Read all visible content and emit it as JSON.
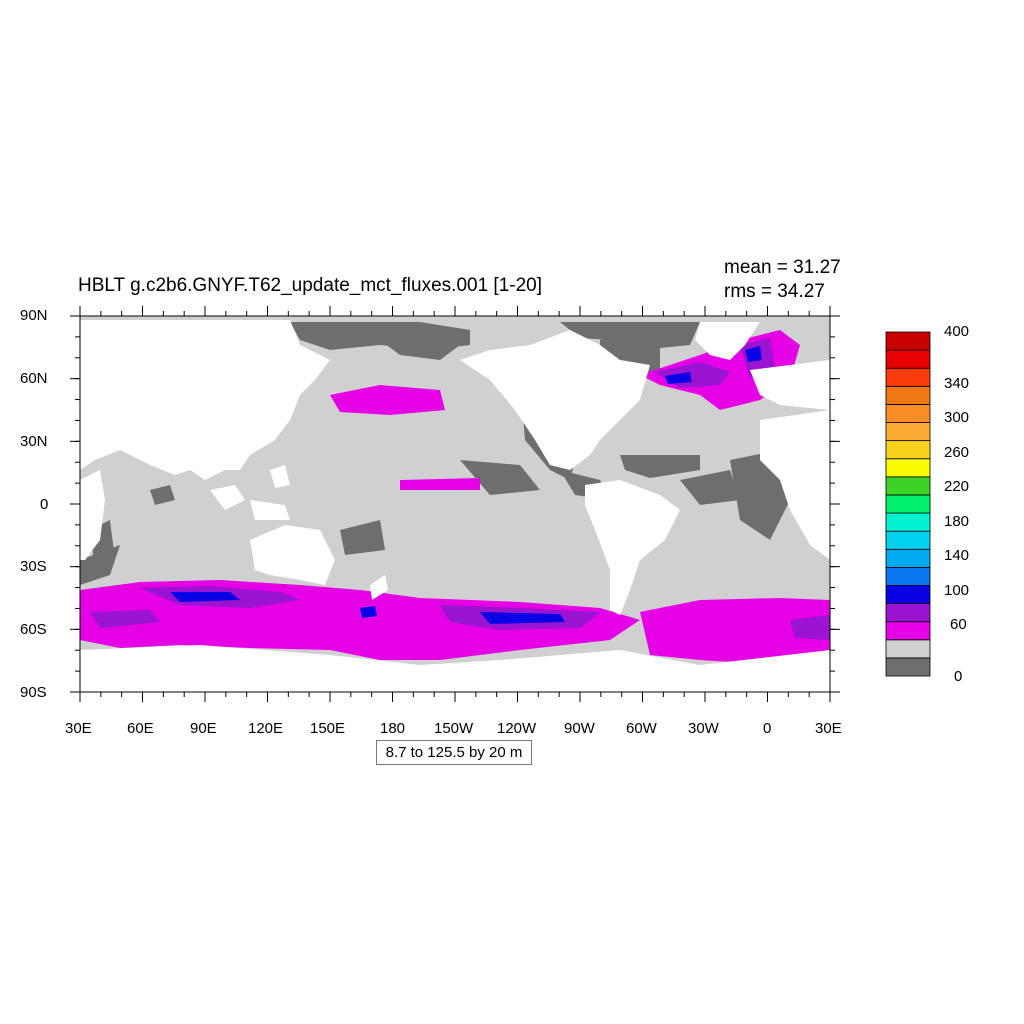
{
  "title": "HBLT g.c2b6.GNYF.T62_update_mct_fluxes.001 [1-20]",
  "stats": {
    "mean": "mean = 31.27",
    "rms": "rms = 34.27"
  },
  "range_note": "8.7 to 125.5 by 20 m",
  "lat_labels": [
    "90N",
    "60N",
    "30N",
    "0",
    "30S",
    "60S",
    "90S"
  ],
  "lon_labels": [
    "30E",
    "60E",
    "90E",
    "120E",
    "150E",
    "180",
    "150W",
    "120W",
    "90W",
    "60W",
    "30W",
    "0",
    "30E"
  ],
  "colorbar": {
    "colors": [
      "#6e6e6e",
      "#d0d0d0",
      "#e600e6",
      "#9b14d2",
      "#0a00e6",
      "#0a78f0",
      "#00aaf0",
      "#00d2f0",
      "#00f0d2",
      "#00f06e",
      "#3cd228",
      "#fafa00",
      "#fad21e",
      "#faaa32",
      "#fa8c28",
      "#f07814",
      "#fa3c0a",
      "#e60000",
      "#c80000"
    ],
    "labels": [
      "0",
      "60",
      "100",
      "140",
      "180",
      "220",
      "260",
      "300",
      "340",
      "400"
    ]
  },
  "colors": {
    "land": "#ffffff",
    "low": "#6e6e6e",
    "mid": "#d0d0d0",
    "magenta": "#e600e6",
    "purple": "#9b14d2",
    "blue": "#0a00e6"
  }
}
